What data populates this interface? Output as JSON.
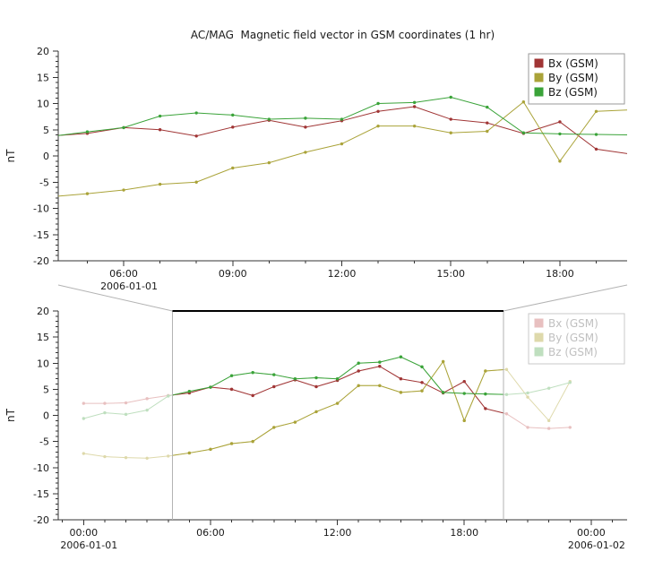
{
  "colors": {
    "text": "#1a1a1a",
    "axis": "#333333",
    "window_outline": "#000000",
    "window_guides": "#b3b3b3",
    "legend_border": "#999999",
    "faded_legend_border": "#c8c8c8",
    "faded_legend_text": "#c0c0c0",
    "background": "#ffffff"
  },
  "chart_data": [
    {
      "type": "line",
      "panel": "zoom",
      "title": "AC/MAG  Magnetic field vector in GSM coordinates (1 hr)",
      "ylabel": "nT",
      "ylim": [
        -20,
        20
      ],
      "yticks": [
        -20,
        -15,
        -10,
        -5,
        0,
        5,
        10,
        15,
        20
      ],
      "ytick_minor_step": 1,
      "xlim_hours": [
        4.2,
        19.85
      ],
      "xtick_minor_step_hours": 1,
      "xticks": [
        {
          "hour": 6,
          "label": "06:00",
          "date_label": "2006-01-01"
        },
        {
          "hour": 9,
          "label": "09:00"
        },
        {
          "hour": 12,
          "label": "12:00"
        },
        {
          "hour": 15,
          "label": "15:00"
        },
        {
          "hour": 18,
          "label": "18:00"
        }
      ],
      "legend": {
        "position": "top-right",
        "faded": false,
        "entries": [
          "Bx (GSM)",
          "By (GSM)",
          "Bz (GSM)"
        ]
      },
      "series": [
        {
          "name": "Bx (GSM)",
          "color": "#a03535",
          "hours": [
            4,
            5,
            6,
            7,
            8,
            9,
            10,
            11,
            12,
            13,
            14,
            15,
            16,
            17,
            18,
            19,
            20
          ],
          "values": [
            3.8,
            4.3,
            5.4,
            5.0,
            3.8,
            5.5,
            6.8,
            5.5,
            6.7,
            8.5,
            9.4,
            7.0,
            6.3,
            4.3,
            6.5,
            1.3,
            0.3
          ]
        },
        {
          "name": "By (GSM)",
          "color": "#aaa339",
          "hours": [
            4,
            5,
            6,
            7,
            8,
            9,
            10,
            11,
            12,
            13,
            14,
            15,
            16,
            17,
            18,
            19,
            20
          ],
          "values": [
            -7.8,
            -7.2,
            -6.5,
            -5.4,
            -5.0,
            -2.3,
            -1.3,
            0.7,
            2.3,
            5.7,
            5.7,
            4.4,
            4.7,
            10.3,
            -1.0,
            8.5,
            8.8
          ]
        },
        {
          "name": "Bz (GSM)",
          "color": "#3aa339",
          "hours": [
            4,
            5,
            6,
            7,
            8,
            9,
            10,
            11,
            12,
            13,
            14,
            15,
            16,
            17,
            18,
            19,
            20
          ],
          "values": [
            3.7,
            4.6,
            5.4,
            7.6,
            8.2,
            7.8,
            7.0,
            7.2,
            7.0,
            10.0,
            10.2,
            11.2,
            9.3,
            4.4,
            4.2,
            4.1,
            4.0
          ]
        }
      ]
    },
    {
      "type": "line",
      "panel": "overview",
      "ylabel": "nT",
      "ylim": [
        -20,
        20
      ],
      "yticks": [
        -20,
        -15,
        -10,
        -5,
        0,
        5,
        10,
        15,
        20
      ],
      "ytick_minor_step": 1,
      "xlim_hours": [
        -1.2,
        25.7
      ],
      "xtick_minor_step_hours": 1,
      "zoom_window_hours": [
        4.2,
        19.85
      ],
      "xticks": [
        {
          "hour": 0,
          "label": "00:00",
          "date_label": "2006-01-01"
        },
        {
          "hour": 6,
          "label": "06:00"
        },
        {
          "hour": 12,
          "label": "12:00"
        },
        {
          "hour": 18,
          "label": "18:00"
        },
        {
          "hour": 24,
          "label": "00:00",
          "date_label": "2006-01-02"
        }
      ],
      "legend": {
        "position": "top-right",
        "faded": true,
        "entries": [
          "Bx (GSM)",
          "By (GSM)",
          "Bz (GSM)"
        ]
      },
      "series": [
        {
          "name": "Bx (GSM)",
          "color": "#a03535",
          "faded_color": "#e8c0c0",
          "hours": [
            0,
            1,
            2,
            3,
            4,
            5,
            6,
            7,
            8,
            9,
            10,
            11,
            12,
            13,
            14,
            15,
            16,
            17,
            18,
            19,
            20,
            21,
            22,
            23
          ],
          "values": [
            2.3,
            2.3,
            2.4,
            3.2,
            3.8,
            4.3,
            5.4,
            5.0,
            3.8,
            5.5,
            6.8,
            5.5,
            6.7,
            8.5,
            9.4,
            7.0,
            6.3,
            4.3,
            6.5,
            1.3,
            0.3,
            -2.3,
            -2.5,
            -2.3
          ]
        },
        {
          "name": "By (GSM)",
          "color": "#aaa339",
          "faded_color": "#ded9ab",
          "hours": [
            0,
            1,
            2,
            3,
            4,
            5,
            6,
            7,
            8,
            9,
            10,
            11,
            12,
            13,
            14,
            15,
            16,
            17,
            18,
            19,
            20,
            21,
            22,
            23
          ],
          "values": [
            -7.3,
            -7.9,
            -8.1,
            -8.2,
            -7.8,
            -7.2,
            -6.5,
            -5.4,
            -5.0,
            -2.3,
            -1.3,
            0.7,
            2.3,
            5.7,
            5.7,
            4.4,
            4.7,
            10.3,
            -1.0,
            8.5,
            8.8,
            3.5,
            -1.0,
            6.5
          ]
        },
        {
          "name": "Bz (GSM)",
          "color": "#3aa339",
          "faded_color": "#bfdfbf",
          "hours": [
            0,
            1,
            2,
            3,
            4,
            5,
            6,
            7,
            8,
            9,
            10,
            11,
            12,
            13,
            14,
            15,
            16,
            17,
            18,
            19,
            20,
            21,
            22,
            23
          ],
          "values": [
            -0.6,
            0.5,
            0.2,
            1.0,
            3.7,
            4.6,
            5.4,
            7.6,
            8.2,
            7.8,
            7.0,
            7.2,
            7.0,
            10.0,
            10.2,
            11.2,
            9.3,
            4.4,
            4.2,
            4.1,
            4.0,
            4.3,
            5.2,
            6.3
          ]
        }
      ]
    }
  ]
}
